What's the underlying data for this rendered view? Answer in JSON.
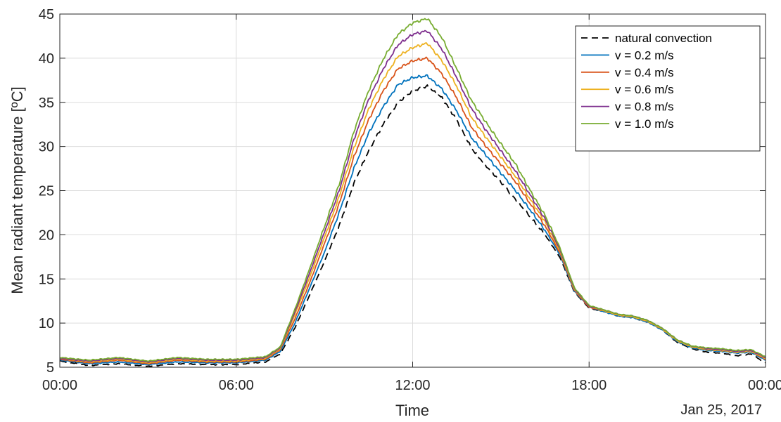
{
  "chart_data": {
    "type": "line",
    "xlabel": "Time",
    "ylabel": "Mean radiant temperature [ºC]",
    "date_label": "Jan 25, 2017",
    "x_unit": "hours",
    "xlim": [
      0,
      24
    ],
    "ylim": [
      5,
      45
    ],
    "x_ticks": [
      {
        "value": 0,
        "label": "00:00"
      },
      {
        "value": 6,
        "label": "06:00"
      },
      {
        "value": 12,
        "label": "12:00"
      },
      {
        "value": 18,
        "label": "18:00"
      },
      {
        "value": 24,
        "label": "00:00"
      }
    ],
    "y_ticks": [
      5,
      10,
      15,
      20,
      25,
      30,
      35,
      40,
      45
    ],
    "grid": true,
    "legend_position": "top-right",
    "x": [
      0,
      1,
      2,
      3,
      4,
      5,
      6,
      7,
      7.5,
      8,
      8.5,
      9,
      9.5,
      10,
      10.5,
      11,
      11.5,
      12,
      12.5,
      13,
      13.5,
      14,
      14.5,
      15,
      15.5,
      16,
      16.5,
      17,
      17.5,
      18,
      18.5,
      19,
      19.5,
      20,
      20.5,
      21,
      21.5,
      22,
      22.5,
      23,
      23.5,
      24
    ],
    "series": [
      {
        "name": "natural convection",
        "color": "#000000",
        "dash": true,
        "values": [
          5.7,
          5.2,
          5.4,
          5.1,
          5.4,
          5.3,
          5.3,
          5.6,
          6.5,
          9.5,
          13.2,
          17.0,
          21.0,
          25.8,
          29.5,
          32.5,
          35.0,
          36.3,
          36.8,
          35.5,
          33.0,
          29.8,
          27.8,
          26.0,
          24.0,
          22.0,
          20.0,
          17.5,
          13.5,
          11.7,
          11.3,
          10.8,
          10.6,
          10.1,
          9.2,
          7.8,
          7.1,
          6.7,
          6.6,
          6.3,
          6.5,
          5.5
        ]
      },
      {
        "name": "v = 0.2 m/s",
        "color": "#0072BD",
        "dash": false,
        "values": [
          5.8,
          5.4,
          5.6,
          5.3,
          5.6,
          5.5,
          5.5,
          5.8,
          6.8,
          10.0,
          14.0,
          18.0,
          22.5,
          27.5,
          31.5,
          34.5,
          37.0,
          37.8,
          38.0,
          36.5,
          34.0,
          31.0,
          29.0,
          27.0,
          25.0,
          22.8,
          20.5,
          17.8,
          13.6,
          11.8,
          11.3,
          10.8,
          10.6,
          10.1,
          9.2,
          7.9,
          7.2,
          6.9,
          6.8,
          6.6,
          6.7,
          5.8
        ]
      },
      {
        "name": "v = 0.4 m/s",
        "color": "#D95319",
        "dash": false,
        "values": [
          5.9,
          5.5,
          5.8,
          5.4,
          5.8,
          5.6,
          5.6,
          5.9,
          7.0,
          10.5,
          14.6,
          19.0,
          23.5,
          28.8,
          33.0,
          36.3,
          38.8,
          39.7,
          40.0,
          38.2,
          35.5,
          32.2,
          30.0,
          28.0,
          26.0,
          23.5,
          21.0,
          18.0,
          13.7,
          11.8,
          11.4,
          10.9,
          10.7,
          10.2,
          9.3,
          8.0,
          7.3,
          7.0,
          6.9,
          6.7,
          6.8,
          5.9
        ]
      },
      {
        "name": "v = 0.6 m/s",
        "color": "#EDB120",
        "dash": false,
        "values": [
          6.0,
          5.6,
          5.9,
          5.5,
          5.9,
          5.7,
          5.7,
          6.0,
          7.1,
          11.0,
          15.2,
          19.7,
          24.3,
          29.8,
          34.2,
          37.6,
          40.2,
          41.2,
          41.7,
          39.7,
          36.8,
          33.3,
          31.0,
          28.8,
          26.6,
          24.0,
          21.5,
          18.2,
          13.8,
          11.9,
          11.4,
          10.9,
          10.7,
          10.2,
          9.3,
          8.0,
          7.3,
          7.0,
          6.9,
          6.7,
          6.8,
          6.0
        ]
      },
      {
        "name": "v = 0.8 m/s",
        "color": "#7E2F8E",
        "dash": false,
        "values": [
          6.0,
          5.7,
          6.0,
          5.6,
          6.0,
          5.8,
          5.8,
          6.1,
          7.2,
          11.3,
          15.7,
          20.3,
          25.0,
          30.8,
          35.3,
          38.8,
          41.5,
          42.7,
          43.1,
          41.0,
          37.8,
          34.3,
          31.8,
          29.5,
          27.2,
          24.5,
          21.8,
          18.4,
          13.9,
          11.9,
          11.5,
          11.0,
          10.8,
          10.3,
          9.4,
          8.1,
          7.4,
          7.1,
          7.0,
          6.8,
          6.9,
          6.1
        ]
      },
      {
        "name": "v = 1.0 m/s",
        "color": "#77AC30",
        "dash": false,
        "values": [
          6.1,
          5.8,
          6.1,
          5.7,
          6.1,
          5.9,
          5.9,
          6.2,
          7.3,
          11.6,
          16.2,
          20.9,
          25.7,
          31.7,
          36.3,
          39.9,
          42.7,
          44.0,
          44.5,
          42.3,
          38.8,
          35.2,
          32.7,
          30.3,
          28.0,
          25.0,
          22.2,
          18.6,
          14.0,
          12.0,
          11.5,
          11.0,
          10.8,
          10.3,
          9.4,
          8.1,
          7.4,
          7.2,
          7.1,
          6.9,
          7.0,
          6.2
        ]
      }
    ]
  }
}
